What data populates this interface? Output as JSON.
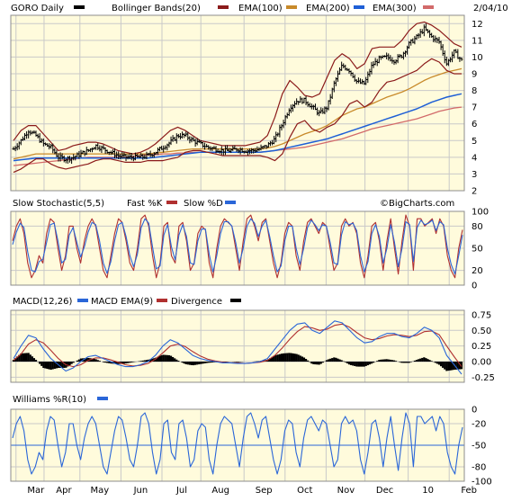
{
  "colors": {
    "plot_bg": "#fffbdc",
    "grid": "#c9c9c9",
    "frame": "#8c8c8c",
    "price": "#000000",
    "bollinger": "#8b1a1a",
    "ema100": "#c88a2a",
    "ema200": "#1e5fd6",
    "ema300": "#d26a6a",
    "stoch_fast": "#b03030",
    "stoch_slow": "#2a66d8",
    "macd": "#2a66d8",
    "macd_ema": "#b03030",
    "divergence": "#000000",
    "williams": "#2a66d8"
  },
  "header": {
    "date": "2/04/10",
    "watermark": "©BigCharts.com"
  },
  "chart_data": [
    {
      "type": "ohlc",
      "title": "GORO Daily",
      "legend": [
        {
          "name": "GORO Daily",
          "color": "#000000"
        },
        {
          "name": "Bollinger Bands(20)",
          "color": "#8b1a1a"
        },
        {
          "name": "EMA(100)",
          "color": "#c88a2a"
        },
        {
          "name": "EMA(200)",
          "color": "#1e5fd6"
        },
        {
          "name": "EMA(300)",
          "color": "#d26a6a"
        }
      ],
      "ylim": [
        2,
        12.5
      ],
      "yticks": [
        2,
        3,
        4,
        5,
        6,
        7,
        8,
        9,
        10,
        11,
        12
      ],
      "price_path": [
        4.5,
        5.0,
        5.6,
        5.3,
        4.8,
        4.6,
        4.0,
        3.9,
        4.0,
        4.2,
        4.4,
        4.7,
        4.5,
        4.3,
        4.1,
        4.0,
        4.0,
        4.0,
        4.1,
        4.3,
        4.6,
        4.9,
        5.3,
        5.3,
        5.0,
        4.8,
        4.6,
        4.5,
        4.4,
        4.4,
        4.5,
        4.4,
        4.4,
        4.5,
        4.7,
        5.1,
        6.0,
        7.0,
        7.4,
        7.4,
        7.0,
        6.6,
        7.0,
        8.5,
        9.5,
        9.2,
        8.5,
        8.4,
        9.5,
        9.9,
        10.0,
        9.8,
        10.1,
        10.8,
        11.2,
        11.7,
        11.2,
        10.9,
        9.6,
        10.3,
        9.8
      ],
      "bb_upper": [
        5.0,
        5.6,
        5.9,
        5.9,
        5.4,
        4.9,
        4.4,
        4.5,
        4.7,
        4.8,
        4.9,
        4.9,
        4.8,
        4.6,
        4.4,
        4.3,
        4.2,
        4.3,
        4.5,
        4.8,
        5.2,
        5.6,
        5.8,
        5.6,
        5.3,
        5.0,
        4.9,
        4.8,
        4.7,
        4.7,
        4.7,
        4.7,
        4.8,
        4.9,
        5.3,
        6.4,
        7.8,
        8.6,
        8.2,
        7.7,
        7.6,
        7.8,
        8.8,
        9.8,
        10.2,
        9.9,
        9.3,
        9.6,
        10.5,
        10.6,
        10.6,
        10.6,
        11.0,
        11.6,
        12.0,
        12.1,
        11.9,
        11.6,
        11.2,
        10.8,
        10.6
      ],
      "bb_lower": [
        3.1,
        3.3,
        3.6,
        3.9,
        3.9,
        3.6,
        3.4,
        3.3,
        3.4,
        3.5,
        3.6,
        3.8,
        3.9,
        3.9,
        3.8,
        3.7,
        3.7,
        3.7,
        3.8,
        3.8,
        3.8,
        3.9,
        4.0,
        4.3,
        4.4,
        4.4,
        4.3,
        4.2,
        4.1,
        4.1,
        4.1,
        4.1,
        4.1,
        4.1,
        4.0,
        3.8,
        4.2,
        5.2,
        6.0,
        6.2,
        5.7,
        5.5,
        5.8,
        6.0,
        6.5,
        7.2,
        7.4,
        7.0,
        7.3,
        8.0,
        8.5,
        8.6,
        8.8,
        9.0,
        9.2,
        9.6,
        9.9,
        9.7,
        9.2,
        9.0,
        9.0
      ],
      "ema100": [
        3.9,
        4.0,
        4.1,
        4.2,
        4.2,
        4.2,
        4.2,
        4.2,
        4.2,
        4.2,
        4.2,
        4.2,
        4.2,
        4.2,
        4.2,
        4.2,
        4.2,
        4.2,
        4.2,
        4.25,
        4.3,
        4.35,
        4.4,
        4.45,
        4.5,
        4.5,
        4.5,
        4.5,
        4.5,
        4.5,
        4.5,
        4.5,
        4.5,
        4.5,
        4.55,
        4.65,
        4.8,
        5.0,
        5.2,
        5.4,
        5.55,
        5.7,
        5.9,
        6.2,
        6.5,
        6.7,
        6.9,
        7.0,
        7.2,
        7.4,
        7.6,
        7.75,
        7.9,
        8.1,
        8.35,
        8.6,
        8.8,
        8.95,
        9.1,
        9.2,
        9.3
      ],
      "ema200": [
        3.8,
        3.85,
        3.9,
        3.95,
        3.95,
        3.95,
        3.95,
        3.95,
        3.95,
        3.95,
        3.95,
        3.95,
        3.95,
        3.95,
        3.95,
        3.95,
        3.95,
        3.95,
        3.95,
        4.0,
        4.05,
        4.1,
        4.15,
        4.2,
        4.25,
        4.3,
        4.3,
        4.3,
        4.3,
        4.3,
        4.3,
        4.3,
        4.3,
        4.3,
        4.35,
        4.4,
        4.5,
        4.6,
        4.7,
        4.8,
        4.9,
        5.0,
        5.1,
        5.25,
        5.4,
        5.55,
        5.7,
        5.85,
        6.0,
        6.15,
        6.3,
        6.45,
        6.6,
        6.75,
        6.9,
        7.1,
        7.3,
        7.45,
        7.6,
        7.7,
        7.8
      ],
      "ema300": [
        3.5,
        3.55,
        3.6,
        3.65,
        3.7,
        3.75,
        3.8,
        3.85,
        3.9,
        3.95,
        4.0,
        4.0,
        4.0,
        4.0,
        4.0,
        4.0,
        4.05,
        4.1,
        4.15,
        4.15,
        4.2,
        4.2,
        4.25,
        4.25,
        4.3,
        4.3,
        4.3,
        4.3,
        4.3,
        4.3,
        4.3,
        4.3,
        4.3,
        4.3,
        4.35,
        4.4,
        4.45,
        4.5,
        4.55,
        4.6,
        4.7,
        4.8,
        4.9,
        5.0,
        5.1,
        5.25,
        5.4,
        5.55,
        5.7,
        5.8,
        5.9,
        6.0,
        6.1,
        6.2,
        6.3,
        6.45,
        6.6,
        6.75,
        6.85,
        6.95,
        7.0
      ]
    },
    {
      "type": "line",
      "title": "Slow Stochastic(5,5)",
      "legend": [
        {
          "name": "Fast %K",
          "color": "#b03030"
        },
        {
          "name": "Slow %D",
          "color": "#2a66d8"
        }
      ],
      "ylim": [
        0,
        100
      ],
      "yticks": [
        0,
        20,
        50,
        80,
        100
      ],
      "x_count": 120,
      "series": [
        {
          "name": "Fast %K",
          "values": [
            60,
            80,
            90,
            70,
            30,
            10,
            20,
            40,
            30,
            70,
            90,
            85,
            50,
            20,
            40,
            80,
            80,
            50,
            30,
            60,
            80,
            90,
            80,
            50,
            20,
            10,
            40,
            70,
            90,
            85,
            60,
            30,
            20,
            50,
            90,
            95,
            80,
            40,
            10,
            30,
            80,
            85,
            40,
            30,
            80,
            85,
            60,
            20,
            30,
            70,
            80,
            75,
            30,
            10,
            50,
            80,
            90,
            85,
            80,
            50,
            20,
            60,
            90,
            95,
            80,
            60,
            85,
            90,
            60,
            30,
            10,
            30,
            70,
            85,
            80,
            40,
            20,
            60,
            85,
            90,
            80,
            70,
            85,
            80,
            50,
            20,
            30,
            80,
            90,
            80,
            85,
            70,
            30,
            10,
            40,
            80,
            85,
            60,
            20,
            60,
            90,
            50,
            15,
            60,
            95,
            80,
            20,
            90,
            90,
            80,
            85,
            90,
            70,
            90,
            80,
            40,
            20,
            10,
            50,
            75
          ]
        },
        {
          "name": "Slow %D",
          "values": [
            55,
            72,
            84,
            78,
            45,
            20,
            18,
            32,
            35,
            58,
            82,
            84,
            60,
            30,
            35,
            68,
            78,
            58,
            38,
            52,
            72,
            85,
            82,
            60,
            30,
            16,
            32,
            60,
            82,
            85,
            66,
            40,
            25,
            42,
            78,
            90,
            84,
            52,
            22,
            26,
            68,
            82,
            52,
            34,
            68,
            82,
            66,
            30,
            28,
            60,
            76,
            76,
            42,
            18,
            40,
            70,
            86,
            86,
            80,
            58,
            30,
            50,
            80,
            90,
            84,
            66,
            80,
            88,
            66,
            40,
            18,
            26,
            60,
            80,
            80,
            50,
            28,
            50,
            78,
            88,
            82,
            74,
            82,
            80,
            58,
            30,
            28,
            68,
            86,
            82,
            84,
            74,
            40,
            18,
            32,
            70,
            82,
            66,
            30,
            50,
            82,
            58,
            25,
            50,
            86,
            82,
            32,
            78,
            88,
            82,
            84,
            88,
            74,
            86,
            82,
            50,
            28,
            15,
            40,
            68
          ]
        }
      ]
    },
    {
      "type": "line",
      "title": "MACD(12,26)",
      "legend": [
        {
          "name": "MACD EMA(9)",
          "color": "#2a66d8"
        },
        {
          "name": "Divergence",
          "color": "#000000"
        }
      ],
      "ylim": [
        -0.33,
        0.82
      ],
      "yticks": [
        -0.25,
        0,
        0.25,
        0.5,
        0.75
      ],
      "ytick_labels": [
        "-0.25",
        "0.00",
        "0.25",
        "0.50",
        "0.75"
      ],
      "x_count": 61,
      "macd": [
        0.05,
        0.25,
        0.42,
        0.38,
        0.2,
        0.05,
        -0.05,
        -0.15,
        -0.1,
        0.0,
        0.08,
        0.1,
        0.05,
        0.0,
        -0.05,
        -0.08,
        -0.08,
        -0.05,
        0.0,
        0.1,
        0.25,
        0.35,
        0.3,
        0.2,
        0.1,
        0.05,
        0.02,
        0.0,
        -0.02,
        -0.02,
        -0.03,
        -0.03,
        -0.02,
        0.0,
        0.05,
        0.2,
        0.35,
        0.5,
        0.6,
        0.62,
        0.5,
        0.45,
        0.55,
        0.65,
        0.62,
        0.5,
        0.38,
        0.3,
        0.32,
        0.4,
        0.45,
        0.45,
        0.4,
        0.38,
        0.45,
        0.55,
        0.5,
        0.38,
        0.1,
        -0.05,
        -0.2
      ],
      "signal": [
        0.02,
        0.12,
        0.28,
        0.35,
        0.3,
        0.18,
        0.05,
        -0.05,
        -0.08,
        -0.05,
        0.02,
        0.06,
        0.06,
        0.03,
        -0.01,
        -0.05,
        -0.07,
        -0.06,
        -0.03,
        0.04,
        0.14,
        0.25,
        0.28,
        0.24,
        0.16,
        0.09,
        0.04,
        0.01,
        -0.01,
        -0.02,
        -0.02,
        -0.03,
        -0.02,
        -0.01,
        0.02,
        0.1,
        0.22,
        0.36,
        0.48,
        0.56,
        0.54,
        0.5,
        0.52,
        0.58,
        0.6,
        0.55,
        0.46,
        0.38,
        0.35,
        0.37,
        0.41,
        0.43,
        0.42,
        0.4,
        0.42,
        0.48,
        0.49,
        0.43,
        0.25,
        0.08,
        -0.08
      ],
      "divergence": [
        0.03,
        0.13,
        0.14,
        0.03,
        -0.1,
        -0.13,
        -0.1,
        -0.1,
        -0.02,
        0.05,
        0.06,
        0.04,
        -0.01,
        -0.03,
        -0.04,
        -0.03,
        -0.01,
        0.01,
        0.03,
        0.06,
        0.11,
        0.1,
        0.02,
        -0.04,
        -0.06,
        -0.04,
        -0.02,
        -0.01,
        -0.01,
        0.0,
        -0.01,
        0.0,
        0.0,
        0.01,
        0.03,
        0.1,
        0.13,
        0.14,
        0.12,
        0.06,
        -0.04,
        -0.05,
        0.03,
        0.07,
        0.02,
        -0.05,
        -0.08,
        -0.08,
        -0.03,
        0.03,
        0.04,
        0.02,
        -0.02,
        -0.02,
        0.03,
        0.07,
        0.01,
        -0.05,
        -0.15,
        -0.13,
        -0.12
      ]
    },
    {
      "type": "line",
      "title": "Williams %R(10)",
      "legend": [
        {
          "name": "Williams %R(10)",
          "color": "#2a66d8"
        }
      ],
      "ylim": [
        -100,
        0
      ],
      "yticks": [
        0,
        -20,
        -50,
        -80,
        -100
      ],
      "reference_line": -50,
      "x_count": 120,
      "series": [
        {
          "name": "Williams %R(10)",
          "values": [
            -40,
            -20,
            -10,
            -30,
            -70,
            -90,
            -80,
            -60,
            -70,
            -30,
            -10,
            -15,
            -50,
            -80,
            -60,
            -20,
            -20,
            -50,
            -70,
            -40,
            -20,
            -10,
            -20,
            -50,
            -80,
            -90,
            -60,
            -30,
            -10,
            -15,
            -40,
            -70,
            -80,
            -50,
            -10,
            -5,
            -20,
            -60,
            -90,
            -70,
            -20,
            -15,
            -60,
            -70,
            -20,
            -15,
            -40,
            -80,
            -70,
            -30,
            -20,
            -25,
            -70,
            -90,
            -50,
            -20,
            -10,
            -15,
            -20,
            -50,
            -80,
            -40,
            -10,
            -5,
            -20,
            -40,
            -15,
            -10,
            -40,
            -70,
            -90,
            -70,
            -30,
            -15,
            -20,
            -60,
            -80,
            -40,
            -15,
            -10,
            -20,
            -30,
            -15,
            -20,
            -50,
            -80,
            -70,
            -20,
            -10,
            -20,
            -15,
            -30,
            -70,
            -90,
            -60,
            -20,
            -15,
            -40,
            -80,
            -40,
            -10,
            -50,
            -85,
            -40,
            -5,
            -20,
            -80,
            -10,
            -10,
            -20,
            -15,
            -10,
            -30,
            -10,
            -20,
            -60,
            -80,
            -90,
            -50,
            -25
          ]
        }
      ]
    }
  ],
  "x_axis": {
    "labels": [
      "Mar",
      "Apr",
      "May",
      "Jun",
      "Jul",
      "Aug",
      "Sep",
      "Oct",
      "Nov",
      "Dec",
      "10",
      "Feb"
    ],
    "positions": [
      0.12,
      0.77,
      1.6,
      2.55,
      3.5,
      4.4,
      5.4,
      6.35,
      7.3,
      8.2,
      9.2,
      10.15
    ],
    "range": [
      0,
      10.5
    ]
  }
}
